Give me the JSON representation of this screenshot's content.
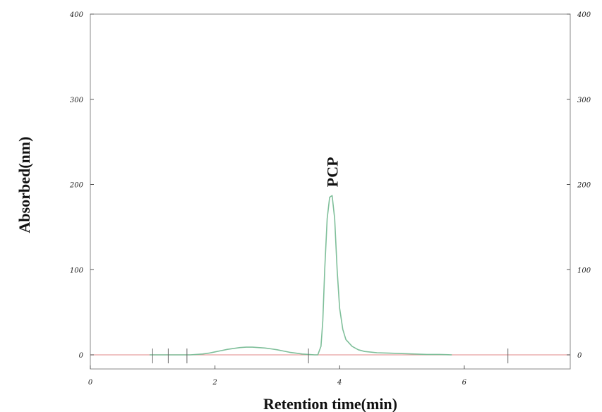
{
  "chart_data": {
    "type": "line",
    "title": "",
    "xlabel": "Retention time(min)",
    "ylabel": "Absorbed(nm)",
    "xlim": [
      0,
      7.7
    ],
    "ylim": [
      0,
      400
    ],
    "x_ticks": [
      {
        "value": 0,
        "label": "0"
      },
      {
        "value": 2,
        "label": "2"
      },
      {
        "value": 4,
        "label": "4"
      },
      {
        "value": 6,
        "label": "6"
      }
    ],
    "y_ticks": [
      {
        "value": 0,
        "label": "0"
      },
      {
        "value": 100,
        "label": "100"
      },
      {
        "value": 200,
        "label": "200"
      },
      {
        "value": 300,
        "label": "300"
      },
      {
        "value": 400,
        "label": "400"
      }
    ],
    "grid": false,
    "secondary_y_axis": true,
    "baseline_color": "#e8a0a0",
    "signal_color": "#7fbf9a",
    "series": [
      {
        "color": "#7fbf9a",
        "x": [
          0.95,
          1.25,
          1.5,
          1.6,
          1.7,
          1.8,
          1.9,
          2.0,
          2.1,
          2.2,
          2.3,
          2.4,
          2.5,
          2.6,
          2.7,
          2.8,
          2.9,
          3.0,
          3.1,
          3.2,
          3.3,
          3.4,
          3.5,
          3.6,
          3.65,
          3.7,
          3.73,
          3.76,
          3.8,
          3.84,
          3.88,
          3.92,
          3.96,
          4.0,
          4.05,
          4.1,
          4.2,
          4.3,
          4.4,
          4.6,
          4.8,
          5.0,
          5.2,
          5.4,
          5.6,
          5.8
        ],
        "y": [
          0,
          0,
          0,
          0,
          0.5,
          1,
          2,
          3.5,
          5,
          6.5,
          7.5,
          8.5,
          9,
          9,
          8.5,
          8,
          7,
          6,
          4.5,
          3,
          2,
          1,
          0.5,
          0,
          0,
          10,
          40,
          100,
          160,
          185,
          187,
          160,
          100,
          55,
          30,
          18,
          10,
          6,
          4,
          2.5,
          2,
          1.5,
          1,
          0.5,
          0.5,
          0
        ]
      }
    ],
    "event_marks": [
      1.0,
      1.25,
      1.55,
      3.5,
      6.7
    ],
    "annotations": [
      {
        "text": "PCP",
        "x": 3.88,
        "y": 187
      }
    ]
  }
}
